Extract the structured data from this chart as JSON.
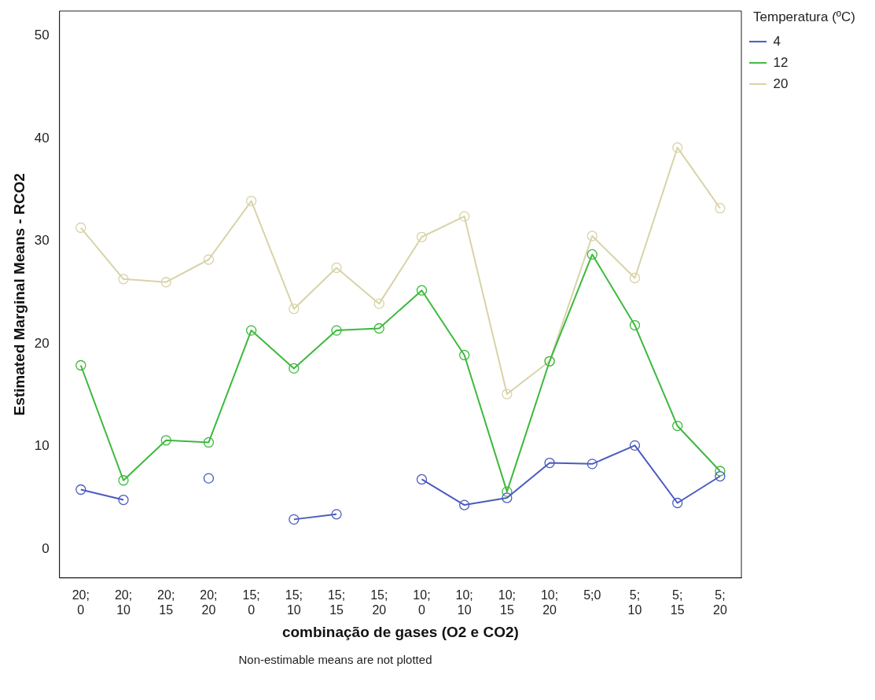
{
  "chart_data": {
    "type": "line",
    "xlabel": "combinação de gases (O2 e CO2)",
    "ylabel": "Estimated Marginal Means - RCO2",
    "legend_title": "Temperatura (ºC)",
    "legend": "right",
    "marker": "circle",
    "grid": false,
    "categories": [
      "20; 0",
      "20; 10",
      "20; 15",
      "20; 20",
      "15; 0",
      "15; 10",
      "15; 15",
      "15; 20",
      "10; 0",
      "10; 10",
      "10; 15",
      "10; 20",
      "5;0",
      "5; 10",
      "5; 15",
      "5; 20"
    ],
    "ylim": [
      -2.8,
      52.4
    ],
    "yticks": [
      0,
      10,
      20,
      30,
      40,
      50
    ],
    "series": [
      {
        "name": "4",
        "color": "#4a5bbf",
        "values": [
          5.8,
          4.8,
          null,
          6.9,
          null,
          2.9,
          3.4,
          null,
          6.8,
          4.3,
          5.0,
          8.4,
          8.3,
          10.1,
          4.5,
          7.1
        ]
      },
      {
        "name": "12",
        "color": "#3cb93c",
        "values": [
          17.9,
          6.7,
          10.6,
          10.4,
          21.3,
          17.6,
          21.3,
          21.5,
          25.2,
          18.9,
          5.6,
          18.3,
          28.7,
          21.8,
          12.0,
          7.6
        ]
      },
      {
        "name": "20",
        "color": "#d8d3a8",
        "values": [
          31.3,
          26.3,
          26.0,
          28.2,
          33.9,
          23.4,
          27.4,
          23.9,
          30.4,
          32.4,
          15.1,
          18.3,
          30.5,
          26.4,
          39.1,
          33.2
        ]
      }
    ],
    "annotations": [
      "Non-estimable means are not plotted"
    ]
  }
}
